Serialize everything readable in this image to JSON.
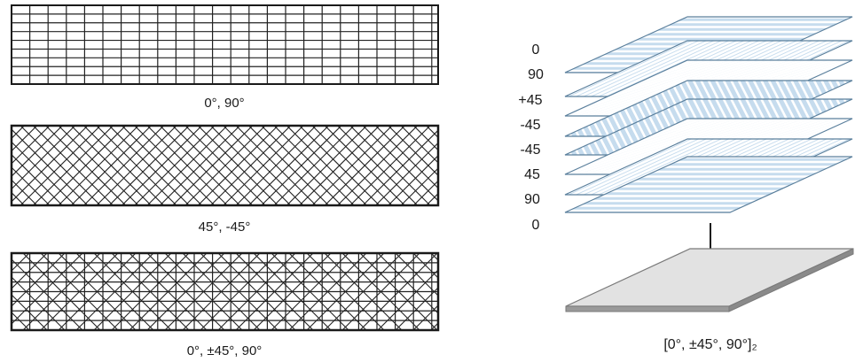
{
  "panels": [
    {
      "caption": "0°, 90°",
      "pattern": [
        "0",
        "90"
      ]
    },
    {
      "caption": "45°, -45°",
      "pattern": [
        "45",
        "-45"
      ]
    },
    {
      "caption": "0°, ±45°, 90°",
      "pattern": [
        "0",
        "45",
        "-45",
        "90"
      ]
    }
  ],
  "stack": {
    "ply_labels": [
      "0",
      "90",
      "+45",
      "-45",
      "-45",
      "45",
      "90",
      "0"
    ],
    "caption": "[0°, ±45°, 90°]₂"
  },
  "colors": {
    "ply_fill": "#c6dcee",
    "ply_stripe": "#ffffff",
    "ply_edge": "#5a7f9c",
    "laminate_top": "#e2e2e2",
    "laminate_edge": "#7a7a7a",
    "grid_line": "#222222"
  }
}
